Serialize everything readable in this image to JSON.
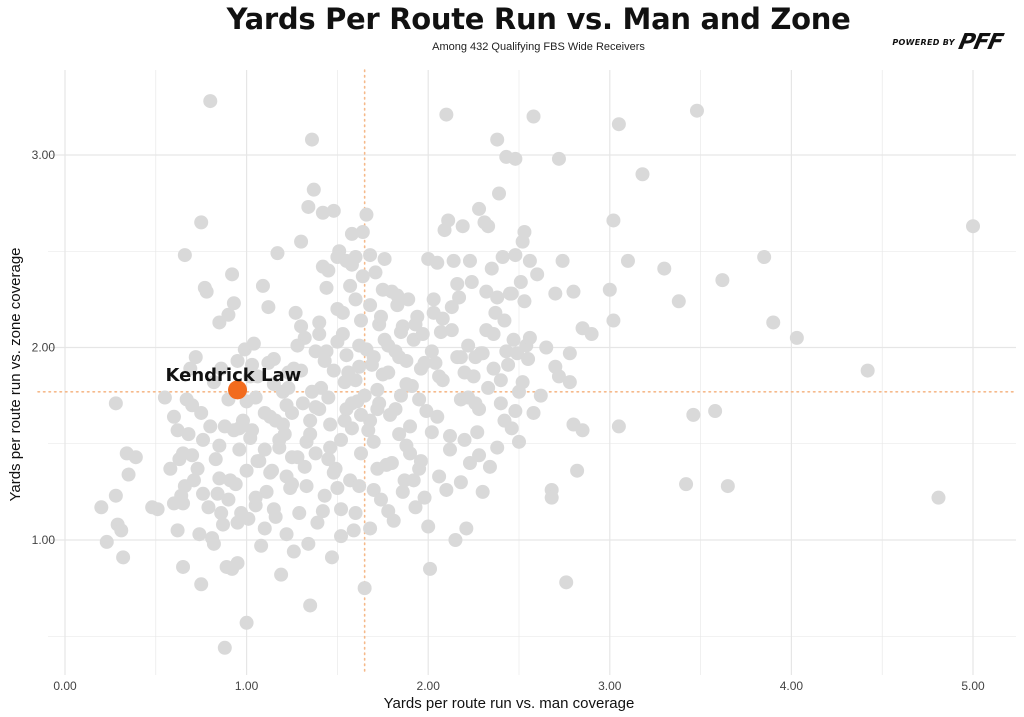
{
  "header": {
    "title": "Yards Per Route Run vs. Man and Zone",
    "subtitle": "Among 432 Qualifying FBS Wide Receivers",
    "brand_prefix": "POWERED BY",
    "brand_logo": "PFF"
  },
  "colors": {
    "point": "#d9d9d9",
    "highlight": "#f26b1d",
    "reference_line": "#f5b98a",
    "grid": "#e6e6e6"
  },
  "chart_data": {
    "type": "scatter",
    "xlabel": "Yards per route run vs. man coverage",
    "ylabel": "Yards per route run vs. zone coverage",
    "xlim": [
      0,
      5.2
    ],
    "ylim": [
      0.35,
      3.4
    ],
    "x_ticks": [
      0,
      1,
      2,
      3,
      4,
      5
    ],
    "x_tick_labels": [
      "0.00",
      "1.00",
      "2.00",
      "3.00",
      "4.00",
      "5.00"
    ],
    "y_ticks": [
      1,
      2,
      3
    ],
    "y_tick_labels": [
      "1.00",
      "2.00",
      "3.00"
    ],
    "grid": true,
    "reference_lines": {
      "x": 1.65,
      "y": 1.77
    },
    "highlight": {
      "name": "Kendrick Law",
      "x": 0.95,
      "y": 1.78
    },
    "points": [
      [
        0.2,
        1.17
      ],
      [
        0.23,
        0.99
      ],
      [
        0.28,
        1.23
      ],
      [
        0.29,
        1.08
      ],
      [
        0.31,
        1.05
      ],
      [
        0.32,
        0.91
      ],
      [
        0.28,
        1.71
      ],
      [
        0.34,
        1.45
      ],
      [
        0.35,
        1.34
      ],
      [
        0.39,
        1.43
      ],
      [
        0.48,
        1.17
      ],
      [
        0.51,
        1.16
      ],
      [
        0.55,
        1.74
      ],
      [
        0.6,
        1.19
      ],
      [
        0.62,
        1.05
      ],
      [
        0.62,
        1.57
      ],
      [
        0.63,
        1.42
      ],
      [
        0.64,
        1.23
      ],
      [
        0.65,
        0.86
      ],
      [
        0.66,
        2.48
      ],
      [
        0.67,
        1.73
      ],
      [
        0.68,
        1.55
      ],
      [
        0.69,
        1.89
      ],
      [
        0.7,
        1.44
      ],
      [
        0.71,
        1.31
      ],
      [
        0.72,
        1.95
      ],
      [
        0.73,
        1.37
      ],
      [
        0.74,
        1.03
      ],
      [
        0.75,
        0.77
      ],
      [
        0.76,
        1.52
      ],
      [
        0.77,
        2.31
      ],
      [
        0.78,
        2.29
      ],
      [
        0.79,
        1.17
      ],
      [
        0.8,
        1.59
      ],
      [
        0.81,
        1.01
      ],
      [
        0.82,
        1.82
      ],
      [
        0.83,
        1.42
      ],
      [
        0.84,
        1.24
      ],
      [
        0.85,
        2.13
      ],
      [
        0.86,
        1.89
      ],
      [
        0.87,
        1.08
      ],
      [
        0.88,
        1.59
      ],
      [
        0.89,
        0.86
      ],
      [
        0.9,
        2.17
      ],
      [
        0.91,
        1.31
      ],
      [
        0.92,
        2.38
      ],
      [
        0.93,
        2.23
      ],
      [
        0.94,
        1.29
      ],
      [
        0.95,
        0.88
      ],
      [
        0.96,
        1.47
      ],
      [
        0.97,
        1.14
      ],
      [
        0.98,
        1.62
      ],
      [
        0.99,
        1.99
      ],
      [
        1.0,
        1.72
      ],
      [
        1.0,
        0.57
      ],
      [
        1.01,
        1.11
      ],
      [
        1.02,
        1.53
      ],
      [
        1.03,
        1.91
      ],
      [
        1.04,
        2.02
      ],
      [
        1.05,
        1.18
      ],
      [
        1.06,
        1.85
      ],
      [
        1.07,
        1.41
      ],
      [
        1.08,
        0.97
      ],
      [
        1.09,
        2.32
      ],
      [
        1.1,
        1.66
      ],
      [
        1.11,
        1.25
      ],
      [
        1.12,
        2.21
      ],
      [
        1.13,
        1.64
      ],
      [
        1.14,
        1.36
      ],
      [
        1.15,
        1.94
      ],
      [
        1.16,
        1.12
      ],
      [
        1.17,
        2.49
      ],
      [
        1.18,
        1.48
      ],
      [
        1.19,
        0.82
      ],
      [
        1.2,
        1.77
      ],
      [
        1.21,
        1.55
      ],
      [
        1.22,
        1.03
      ],
      [
        1.23,
        1.87
      ],
      [
        1.24,
        1.27
      ],
      [
        1.25,
        1.66
      ],
      [
        1.26,
        0.94
      ],
      [
        1.27,
        2.18
      ],
      [
        1.28,
        1.43
      ],
      [
        1.29,
        1.14
      ],
      [
        1.3,
        2.11
      ],
      [
        1.31,
        1.71
      ],
      [
        1.32,
        2.05
      ],
      [
        1.33,
        1.51
      ],
      [
        1.34,
        2.73
      ],
      [
        1.35,
        0.66
      ],
      [
        1.36,
        3.08
      ],
      [
        1.37,
        2.82
      ],
      [
        1.38,
        1.69
      ],
      [
        1.39,
        1.09
      ],
      [
        1.4,
        2.13
      ],
      [
        1.41,
        1.79
      ],
      [
        1.42,
        2.7
      ],
      [
        1.43,
        1.23
      ],
      [
        1.44,
        1.98
      ],
      [
        1.45,
        2.4
      ],
      [
        1.46,
        1.48
      ],
      [
        1.47,
        0.91
      ],
      [
        1.48,
        2.71
      ],
      [
        1.49,
        1.37
      ],
      [
        1.5,
        2.03
      ],
      [
        1.51,
        2.5
      ],
      [
        1.52,
        1.16
      ],
      [
        1.53,
        2.18
      ],
      [
        1.54,
        1.62
      ],
      [
        1.55,
        2.45
      ],
      [
        1.56,
        1.87
      ],
      [
        1.57,
        1.31
      ],
      [
        1.58,
        2.59
      ],
      [
        1.59,
        1.05
      ],
      [
        1.6,
        2.25
      ],
      [
        1.61,
        1.72
      ],
      [
        1.62,
        2.01
      ],
      [
        1.63,
        1.45
      ],
      [
        1.64,
        2.37
      ],
      [
        1.65,
        0.75
      ],
      [
        1.66,
        2.69
      ],
      [
        1.67,
        1.57
      ],
      [
        1.68,
        2.22
      ],
      [
        1.69,
        1.91
      ],
      [
        1.7,
        1.26
      ],
      [
        1.71,
        2.39
      ],
      [
        1.72,
        1.68
      ],
      [
        1.73,
        2.12
      ],
      [
        1.74,
        1.21
      ],
      [
        1.75,
        1.86
      ],
      [
        1.76,
        2.46
      ],
      [
        1.77,
        1.39
      ],
      [
        1.78,
        2.01
      ],
      [
        1.79,
        1.65
      ],
      [
        1.8,
        2.29
      ],
      [
        1.81,
        1.1
      ],
      [
        1.82,
        1.98
      ],
      [
        1.83,
        2.22
      ],
      [
        1.84,
        1.55
      ],
      [
        1.85,
        1.75
      ],
      [
        1.86,
        2.11
      ],
      [
        1.87,
        1.31
      ],
      [
        1.88,
        1.93
      ],
      [
        1.89,
        2.25
      ],
      [
        1.9,
        1.45
      ],
      [
        1.91,
        1.8
      ],
      [
        1.92,
        2.04
      ],
      [
        1.93,
        1.17
      ],
      [
        1.94,
        2.16
      ],
      [
        1.95,
        1.37
      ],
      [
        1.96,
        1.89
      ],
      [
        1.97,
        2.07
      ],
      [
        1.98,
        1.22
      ],
      [
        1.99,
        1.67
      ],
      [
        2.0,
        2.46
      ],
      [
        2.01,
        0.85
      ],
      [
        2.02,
        1.56
      ],
      [
        2.03,
        2.25
      ],
      [
        2.04,
        1.92
      ],
      [
        2.05,
        2.44
      ],
      [
        2.06,
        1.33
      ],
      [
        2.07,
        2.08
      ],
      [
        2.08,
        1.83
      ],
      [
        2.09,
        2.61
      ],
      [
        2.1,
        3.21
      ],
      [
        2.11,
        2.66
      ],
      [
        2.12,
        1.47
      ],
      [
        2.13,
        2.21
      ],
      [
        2.14,
        2.45
      ],
      [
        2.15,
        1.0
      ],
      [
        2.16,
        1.95
      ],
      [
        2.17,
        2.26
      ],
      [
        2.18,
        1.73
      ],
      [
        2.19,
        2.63
      ],
      [
        2.2,
        1.52
      ],
      [
        2.21,
        1.06
      ],
      [
        2.22,
        2.01
      ],
      [
        2.23,
        1.4
      ],
      [
        2.24,
        2.34
      ],
      [
        2.25,
        1.85
      ],
      [
        2.26,
        1.71
      ],
      [
        2.27,
        1.56
      ],
      [
        2.28,
        2.72
      ],
      [
        2.29,
        1.97
      ],
      [
        2.3,
        1.25
      ],
      [
        2.31,
        2.65
      ],
      [
        2.32,
        2.29
      ],
      [
        2.33,
        1.79
      ],
      [
        2.34,
        1.38
      ],
      [
        2.35,
        2.41
      ],
      [
        2.36,
        1.89
      ],
      [
        2.37,
        2.18
      ],
      [
        2.38,
        3.08
      ],
      [
        2.39,
        2.8
      ],
      [
        2.4,
        1.71
      ],
      [
        2.41,
        2.47
      ],
      [
        2.42,
        2.14
      ],
      [
        2.43,
        2.99
      ],
      [
        2.44,
        1.91
      ],
      [
        2.45,
        2.28
      ],
      [
        2.46,
        1.58
      ],
      [
        2.47,
        2.04
      ],
      [
        2.48,
        2.98
      ],
      [
        2.49,
        1.97
      ],
      [
        2.5,
        1.51
      ],
      [
        2.51,
        2.34
      ],
      [
        2.52,
        2.55
      ],
      [
        2.53,
        2.6
      ],
      [
        2.54,
        2.01
      ],
      [
        2.55,
        1.94
      ],
      [
        2.56,
        2.05
      ],
      [
        2.58,
        3.2
      ],
      [
        2.6,
        2.38
      ],
      [
        2.62,
        1.75
      ],
      [
        2.65,
        2.0
      ],
      [
        2.68,
        1.26
      ],
      [
        2.68,
        1.22
      ],
      [
        2.7,
        2.28
      ],
      [
        2.7,
        1.9
      ],
      [
        2.72,
        2.98
      ],
      [
        2.72,
        1.85
      ],
      [
        2.74,
        2.45
      ],
      [
        2.76,
        0.78
      ],
      [
        2.78,
        1.97
      ],
      [
        2.78,
        1.82
      ],
      [
        2.8,
        2.29
      ],
      [
        2.8,
        1.6
      ],
      [
        2.82,
        1.36
      ],
      [
        2.85,
        2.1
      ],
      [
        2.85,
        1.57
      ],
      [
        2.9,
        2.07
      ],
      [
        3.0,
        2.3
      ],
      [
        3.02,
        2.66
      ],
      [
        3.02,
        2.14
      ],
      [
        3.05,
        3.16
      ],
      [
        3.05,
        1.59
      ],
      [
        3.1,
        2.45
      ],
      [
        3.18,
        2.9
      ],
      [
        3.3,
        2.41
      ],
      [
        3.38,
        2.24
      ],
      [
        3.42,
        1.29
      ],
      [
        3.46,
        1.65
      ],
      [
        3.48,
        3.23
      ],
      [
        3.58,
        1.67
      ],
      [
        3.62,
        2.35
      ],
      [
        3.65,
        1.28
      ],
      [
        3.85,
        2.47
      ],
      [
        3.9,
        2.13
      ],
      [
        4.03,
        2.05
      ],
      [
        4.42,
        1.88
      ],
      [
        4.81,
        1.22
      ],
      [
        5.0,
        2.63
      ],
      [
        0.8,
        3.28
      ],
      [
        0.75,
        2.65
      ],
      [
        0.95,
        1.93
      ],
      [
        1.05,
        1.74
      ],
      [
        1.15,
        1.81
      ],
      [
        1.25,
        1.43
      ],
      [
        1.35,
        1.55
      ],
      [
        1.45,
        1.74
      ],
      [
        1.55,
        1.68
      ],
      [
        1.6,
        1.83
      ],
      [
        1.7,
        1.95
      ],
      [
        1.4,
        1.68
      ],
      [
        1.3,
        1.88
      ],
      [
        1.2,
        1.6
      ],
      [
        1.1,
        1.47
      ],
      [
        1.0,
        1.36
      ],
      [
        0.9,
        1.73
      ],
      [
        0.85,
        1.49
      ],
      [
        0.7,
        1.7
      ],
      [
        0.6,
        1.64
      ],
      [
        0.65,
        1.19
      ],
      [
        0.58,
        1.37
      ],
      [
        0.9,
        1.21
      ],
      [
        1.1,
        1.06
      ],
      [
        1.5,
        1.27
      ],
      [
        1.6,
        1.14
      ],
      [
        1.7,
        1.51
      ],
      [
        1.8,
        1.4
      ],
      [
        1.9,
        1.59
      ],
      [
        2.0,
        1.07
      ],
      [
        2.1,
        1.26
      ],
      [
        2.2,
        1.87
      ],
      [
        2.3,
        1.97
      ],
      [
        2.4,
        1.83
      ],
      [
        2.5,
        1.77
      ],
      [
        1.5,
        2.2
      ],
      [
        1.6,
        2.47
      ],
      [
        1.4,
        2.07
      ],
      [
        1.3,
        2.55
      ],
      [
        1.55,
        1.96
      ],
      [
        1.65,
        1.75
      ],
      [
        1.75,
        2.3
      ],
      [
        1.85,
        2.08
      ],
      [
        1.95,
        1.73
      ],
      [
        2.05,
        1.64
      ],
      [
        1.45,
        1.42
      ],
      [
        1.35,
        1.62
      ],
      [
        1.25,
        1.29
      ],
      [
        1.15,
        1.16
      ],
      [
        1.05,
        1.22
      ],
      [
        0.95,
        1.09
      ],
      [
        0.85,
        1.32
      ],
      [
        0.75,
        1.66
      ],
      [
        0.65,
        1.45
      ],
      [
        1.62,
        1.9
      ],
      [
        1.68,
        1.62
      ],
      [
        1.72,
        1.78
      ],
      [
        1.58,
        1.58
      ],
      [
        1.48,
        1.88
      ],
      [
        1.52,
        1.52
      ],
      [
        1.38,
        1.98
      ],
      [
        1.42,
        2.42
      ],
      [
        1.57,
        2.32
      ],
      [
        1.63,
        2.14
      ],
      [
        1.78,
        1.87
      ],
      [
        1.82,
        1.68
      ],
      [
        1.88,
        1.49
      ],
      [
        1.92,
        1.31
      ],
      [
        2.02,
        1.98
      ],
      [
        2.12,
        1.54
      ],
      [
        2.18,
        1.3
      ],
      [
        2.22,
        1.74
      ],
      [
        2.28,
        1.44
      ],
      [
        2.32,
        2.09
      ],
      [
        2.38,
        2.26
      ],
      [
        2.42,
        1.62
      ],
      [
        2.48,
        2.48
      ],
      [
        2.52,
        1.82
      ],
      [
        2.58,
        1.66
      ],
      [
        1.02,
        1.85
      ],
      [
        1.12,
        1.92
      ],
      [
        1.18,
        1.52
      ],
      [
        1.22,
        1.7
      ],
      [
        1.28,
        2.01
      ],
      [
        1.32,
        1.38
      ],
      [
        1.42,
        1.15
      ],
      [
        1.52,
        1.02
      ],
      [
        1.62,
        1.28
      ],
      [
        1.72,
        1.37
      ],
      [
        0.82,
        0.98
      ],
      [
        0.92,
        0.85
      ],
      [
        0.88,
        0.44
      ],
      [
        1.22,
        1.33
      ],
      [
        1.34,
        0.98
      ],
      [
        1.46,
        1.6
      ],
      [
        1.54,
        1.82
      ],
      [
        1.66,
        1.99
      ],
      [
        1.76,
        2.04
      ],
      [
        1.86,
        1.25
      ],
      [
        1.96,
        1.41
      ],
      [
        2.06,
        1.85
      ],
      [
        2.16,
        2.33
      ],
      [
        2.26,
        1.95
      ],
      [
        2.36,
        2.07
      ],
      [
        2.46,
        2.28
      ],
      [
        2.56,
        2.45
      ],
      [
        1.5,
        2.47
      ],
      [
        1.58,
        2.43
      ],
      [
        1.64,
        2.6
      ],
      [
        1.68,
        2.48
      ],
      [
        1.74,
        2.16
      ],
      [
        1.84,
        1.95
      ],
      [
        1.44,
        2.31
      ],
      [
        1.36,
        1.77
      ],
      [
        1.26,
        1.89
      ],
      [
        1.16,
        1.62
      ],
      [
        1.06,
        1.41
      ],
      [
        0.96,
        1.58
      ],
      [
        0.86,
        1.14
      ],
      [
        0.76,
        1.24
      ],
      [
        0.66,
        1.28
      ],
      [
        1.38,
        1.45
      ],
      [
        1.48,
        1.35
      ],
      [
        1.58,
        1.71
      ],
      [
        1.68,
        1.06
      ],
      [
        1.78,
        1.15
      ],
      [
        1.88,
        1.81
      ],
      [
        1.98,
        1.92
      ],
      [
        2.08,
        2.15
      ],
      [
        2.18,
        1.95
      ],
      [
        2.28,
        1.68
      ],
      [
        2.38,
        1.48
      ],
      [
        2.48,
        1.67
      ],
      [
        0.93,
        1.57
      ],
      [
        1.03,
        1.57
      ],
      [
        1.13,
        1.35
      ],
      [
        1.23,
        1.79
      ],
      [
        1.33,
        1.28
      ],
      [
        1.43,
        1.93
      ],
      [
        1.53,
        2.07
      ],
      [
        1.63,
        1.65
      ],
      [
        1.73,
        1.71
      ],
      [
        1.83,
        2.27
      ],
      [
        1.93,
        2.12
      ],
      [
        2.03,
        2.18
      ],
      [
        2.13,
        2.09
      ],
      [
        2.23,
        2.45
      ],
      [
        2.33,
        2.63
      ],
      [
        2.43,
        1.98
      ],
      [
        2.53,
        2.24
      ]
    ]
  }
}
